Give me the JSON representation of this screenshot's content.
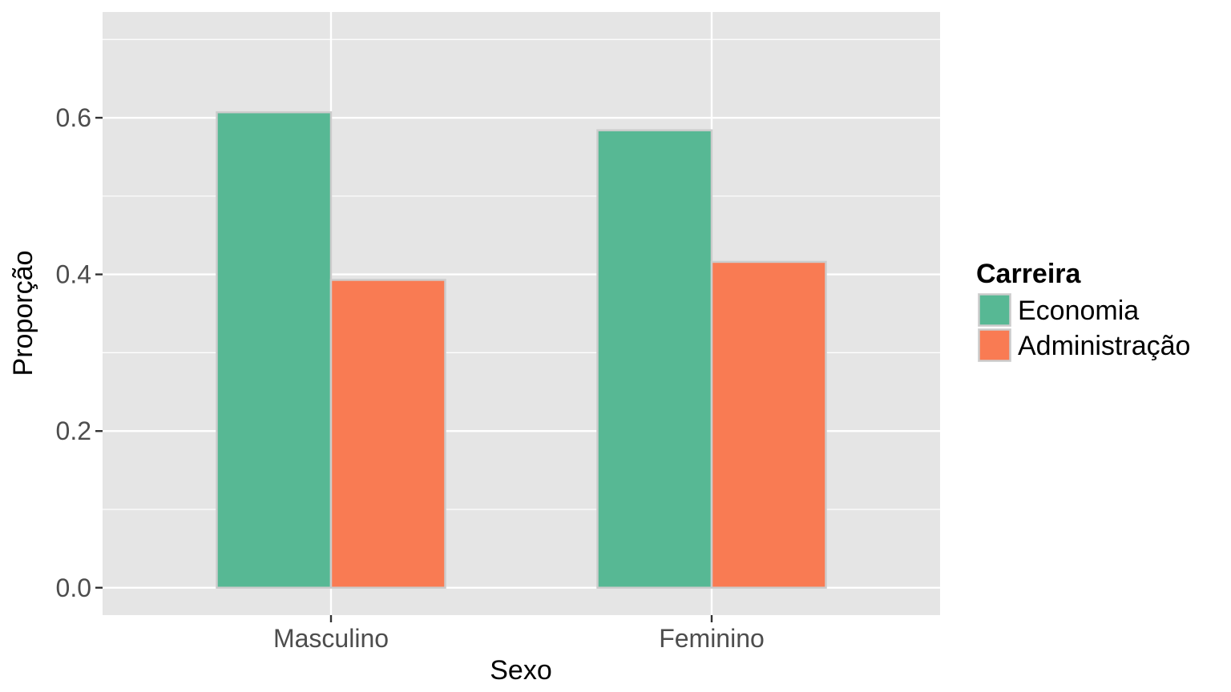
{
  "chart_data": {
    "type": "bar",
    "title": "",
    "xlabel": "Sexo",
    "ylabel": "Proporção",
    "categories": [
      "Masculino",
      "Feminino"
    ],
    "series": [
      {
        "name": "Economia",
        "color": "#57b894",
        "values": [
          0.607,
          0.584
        ]
      },
      {
        "name": "Administração",
        "color": "#f97b53",
        "values": [
          0.393,
          0.416
        ]
      }
    ],
    "ylim": [
      -0.035,
      0.735
    ],
    "yticks": [
      0.0,
      0.2,
      0.4,
      0.6
    ],
    "ytick_labels": [
      "0.0",
      "0.2",
      "0.4",
      "0.6"
    ],
    "grid": true,
    "legend": {
      "title": "Carreira",
      "position": "right"
    },
    "colors": {
      "panel_background": "#e5e5e5",
      "grid": "#ffffff",
      "bar_border": "#cccccc"
    }
  }
}
